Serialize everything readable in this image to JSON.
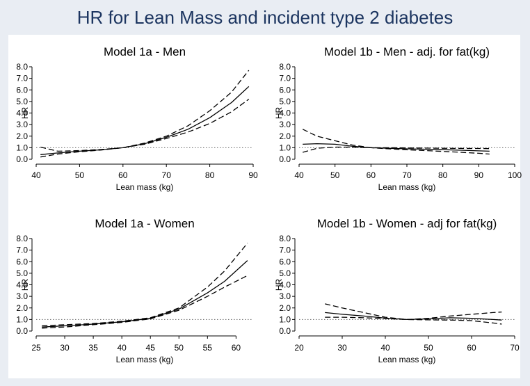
{
  "title": "HR for Lean Mass and incident type 2 diabetes",
  "colors": {
    "background": "#e9edf3",
    "panel": "#ffffff",
    "title": "#1c3560",
    "line": "#000000",
    "reference": "#666666"
  },
  "chart_data": [
    {
      "type": "line",
      "title": "Model 1a - Men",
      "xlabel": "Lean mass (kg)",
      "ylabel": "HR",
      "xlim": [
        40,
        90
      ],
      "ylim": [
        0,
        8
      ],
      "xticks": [
        40,
        50,
        60,
        70,
        80,
        90
      ],
      "xtick_labels": [
        "40",
        "50",
        "60",
        "70",
        "80",
        "90"
      ],
      "yticks": [
        0,
        1,
        2,
        3,
        4,
        5,
        6,
        7,
        8
      ],
      "ytick_labels": [
        "0.0",
        "1.0",
        "2.0",
        "3.0",
        "4.0",
        "5.0",
        "6.0",
        "7.0",
        "8.0"
      ],
      "reference_line": 1,
      "x": [
        41,
        45,
        50,
        55,
        60,
        65,
        70,
        75,
        80,
        85,
        89
      ],
      "series": [
        {
          "name": "HR",
          "style": "solid",
          "values": [
            0.4,
            0.55,
            0.7,
            0.82,
            1.0,
            1.35,
            1.9,
            2.6,
            3.6,
            4.9,
            6.3
          ]
        },
        {
          "name": "Lower 95% CI",
          "style": "dashed",
          "values": [
            0.2,
            0.45,
            0.65,
            0.8,
            1.0,
            1.3,
            1.8,
            2.35,
            3.1,
            4.1,
            5.2
          ]
        },
        {
          "name": "Upper 95% CI",
          "style": "dashed",
          "values": [
            1.05,
            0.7,
            0.75,
            0.85,
            1.0,
            1.4,
            2.0,
            2.9,
            4.2,
            5.8,
            7.7
          ]
        }
      ]
    },
    {
      "type": "line",
      "title": "Model 1b - Men - adj. for fat(kg)",
      "xlabel": "Lean mass (kg)",
      "ylabel": "HR",
      "xlim": [
        40,
        100
      ],
      "ylim": [
        0,
        8
      ],
      "xticks": [
        40,
        50,
        60,
        70,
        80,
        90,
        100
      ],
      "xtick_labels": [
        "40",
        "50",
        "60",
        "70",
        "80",
        "90",
        "100"
      ],
      "yticks": [
        0,
        1,
        2,
        3,
        4,
        5,
        6,
        7,
        8
      ],
      "ytick_labels": [
        "0.0",
        "1.0",
        "2.0",
        "3.0",
        "4.0",
        "5.0",
        "6.0",
        "7.0",
        "8.0"
      ],
      "reference_line": 1,
      "x": [
        41,
        45,
        50,
        55,
        60,
        65,
        70,
        75,
        80,
        85,
        90,
        93
      ],
      "series": [
        {
          "name": "HR",
          "style": "solid",
          "values": [
            1.3,
            1.35,
            1.3,
            1.12,
            1.0,
            0.95,
            0.9,
            0.87,
            0.83,
            0.78,
            0.73,
            0.7
          ]
        },
        {
          "name": "Lower 95% CI",
          "style": "dashed",
          "values": [
            0.6,
            0.95,
            1.05,
            1.05,
            1.0,
            0.9,
            0.82,
            0.75,
            0.68,
            0.6,
            0.52,
            0.45
          ]
        },
        {
          "name": "Upper 95% CI",
          "style": "dashed",
          "values": [
            2.6,
            2.0,
            1.6,
            1.22,
            1.0,
            1.0,
            0.98,
            0.97,
            0.95,
            0.94,
            0.93,
            0.92
          ]
        }
      ]
    },
    {
      "type": "line",
      "title": "Model 1a - Women",
      "xlabel": "Lean mass (kg)",
      "ylabel": "HR",
      "xlim": [
        25,
        63
      ],
      "ylim": [
        0,
        8
      ],
      "xticks": [
        25,
        30,
        35,
        40,
        45,
        50,
        55,
        60
      ],
      "xtick_labels": [
        "25",
        "30",
        "35",
        "40",
        "45",
        "50",
        "55",
        "60"
      ],
      "yticks": [
        0,
        1,
        2,
        3,
        4,
        5,
        6,
        7,
        8
      ],
      "ytick_labels": [
        "0.0",
        "1.0",
        "2.0",
        "3.0",
        "4.0",
        "5.0",
        "6.0",
        "7.0",
        "8.0"
      ],
      "reference_line": 1,
      "x": [
        26,
        30,
        35,
        40,
        45,
        50,
        55,
        58,
        62
      ],
      "series": [
        {
          "name": "HR",
          "style": "solid",
          "values": [
            0.35,
            0.45,
            0.6,
            0.8,
            1.1,
            1.9,
            3.3,
            4.3,
            6.1
          ]
        },
        {
          "name": "Lower 95% CI",
          "style": "dashed",
          "values": [
            0.25,
            0.35,
            0.55,
            0.75,
            1.05,
            1.8,
            3.0,
            3.8,
            4.8
          ]
        },
        {
          "name": "Upper 95% CI",
          "style": "dashed",
          "values": [
            0.45,
            0.55,
            0.65,
            0.85,
            1.15,
            2.0,
            3.8,
            5.2,
            7.6
          ]
        }
      ]
    },
    {
      "type": "line",
      "title": "Model 1b - Women - adj for fat(kg)",
      "xlabel": "Lean mass (kg)",
      "ylabel": "HR",
      "xlim": [
        20,
        70
      ],
      "ylim": [
        0,
        8
      ],
      "xticks": [
        20,
        30,
        40,
        50,
        60,
        70
      ],
      "xtick_labels": [
        "20",
        "30",
        "40",
        "50",
        "60",
        "70"
      ],
      "yticks": [
        0,
        1,
        2,
        3,
        4,
        5,
        6,
        7,
        8
      ],
      "ytick_labels": [
        "0.0",
        "1.0",
        "2.0",
        "3.0",
        "4.0",
        "5.0",
        "6.0",
        "7.0",
        "8.0"
      ],
      "reference_line": 1,
      "x": [
        26,
        30,
        35,
        40,
        45,
        50,
        55,
        60,
        65,
        67
      ],
      "series": [
        {
          "name": "HR",
          "style": "solid",
          "values": [
            1.6,
            1.45,
            1.3,
            1.12,
            1.0,
            1.05,
            1.15,
            1.1,
            1.0,
            0.95
          ]
        },
        {
          "name": "Lower 95% CI",
          "style": "dashed",
          "values": [
            1.2,
            1.2,
            1.15,
            1.08,
            1.0,
            0.97,
            0.95,
            0.9,
            0.7,
            0.6
          ]
        },
        {
          "name": "Upper 95% CI",
          "style": "dashed",
          "values": [
            2.35,
            2.0,
            1.6,
            1.2,
            1.0,
            1.1,
            1.3,
            1.45,
            1.6,
            1.65
          ]
        }
      ]
    }
  ]
}
